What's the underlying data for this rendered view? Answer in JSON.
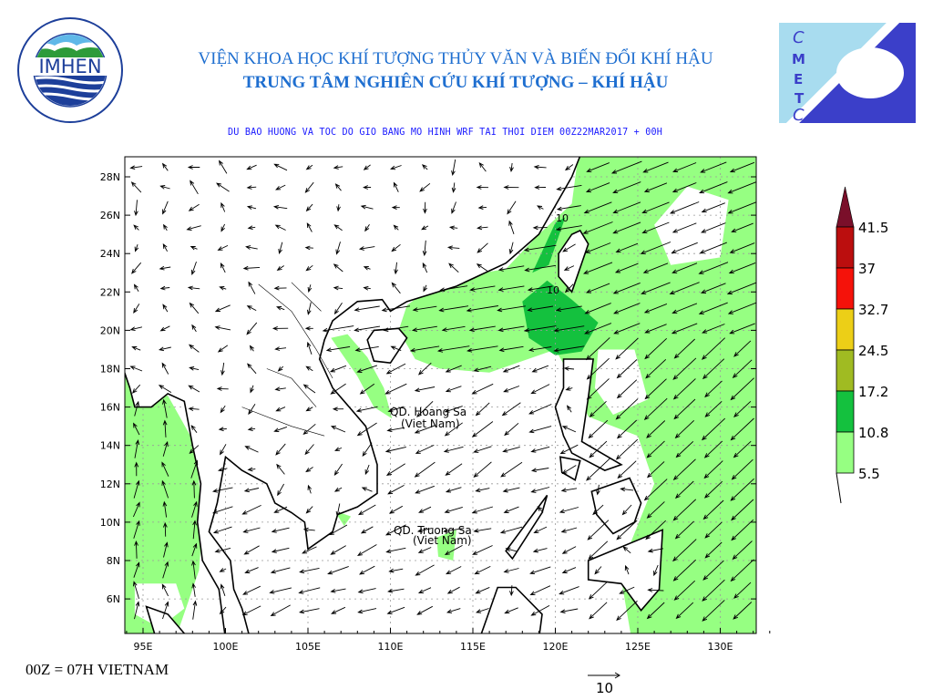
{
  "header": {
    "title_line1": "VIỆN KHOA HỌC KHÍ TƯỢNG THỦY VĂN VÀ BIẾN ĐỔI KHÍ HẬU",
    "title_line2": "TRUNG TÂM NGHIÊN CỨU KHÍ TƯỢNG – KHÍ HẬU",
    "subtitle": "DU BAO HUONG VA TOC DO GIO BANG MO HINH WRF TAI THOI DIEM  00Z22MAR2017 + 00H"
  },
  "logos": {
    "left": {
      "text": "IMHEN",
      "ring_top": "VIỆN KHOA HỌC",
      "ring_bottom": "KHÍ TƯỢNG THỦY VĂN VÀ BIẾN ĐỔI KHÍ HẬU"
    },
    "right": {
      "letters": [
        "C",
        "M",
        "E",
        "T",
        "C"
      ]
    }
  },
  "map": {
    "lon_ticks": [
      "95E",
      "100E",
      "105E",
      "110E",
      "115E",
      "120E",
      "125E",
      "130E"
    ],
    "lat_ticks": [
      "28N",
      "26N",
      "24N",
      "22N",
      "20N",
      "18N",
      "16N",
      "14N",
      "12N",
      "10N",
      "8N",
      "6N"
    ],
    "labels": {
      "hoang_sa": "QD. Hoang Sa",
      "hoang_sa_sub": "(Viet Nam)",
      "truong_sa": "QD. Truong Sa",
      "truong_sa_sub": "(Viet Nam)",
      "contour_a": "10",
      "contour_b": "10"
    },
    "colors": {
      "land": "#ffffff",
      "coast": "#000000",
      "grid": "#9a9a9a"
    }
  },
  "legend": {
    "unit_levels": [
      "41.5",
      "37",
      "32.7",
      "24.5",
      "17.2",
      "10.8",
      "5.5"
    ],
    "colors": [
      "#7a0f2a",
      "#bb0e0e",
      "#f5120a",
      "#eccf17",
      "#a0bb22",
      "#14c13e",
      "#96ff82"
    ]
  },
  "reference_vector": {
    "value": "10"
  },
  "footer": {
    "text": "00Z = 07H VIETNAM"
  }
}
